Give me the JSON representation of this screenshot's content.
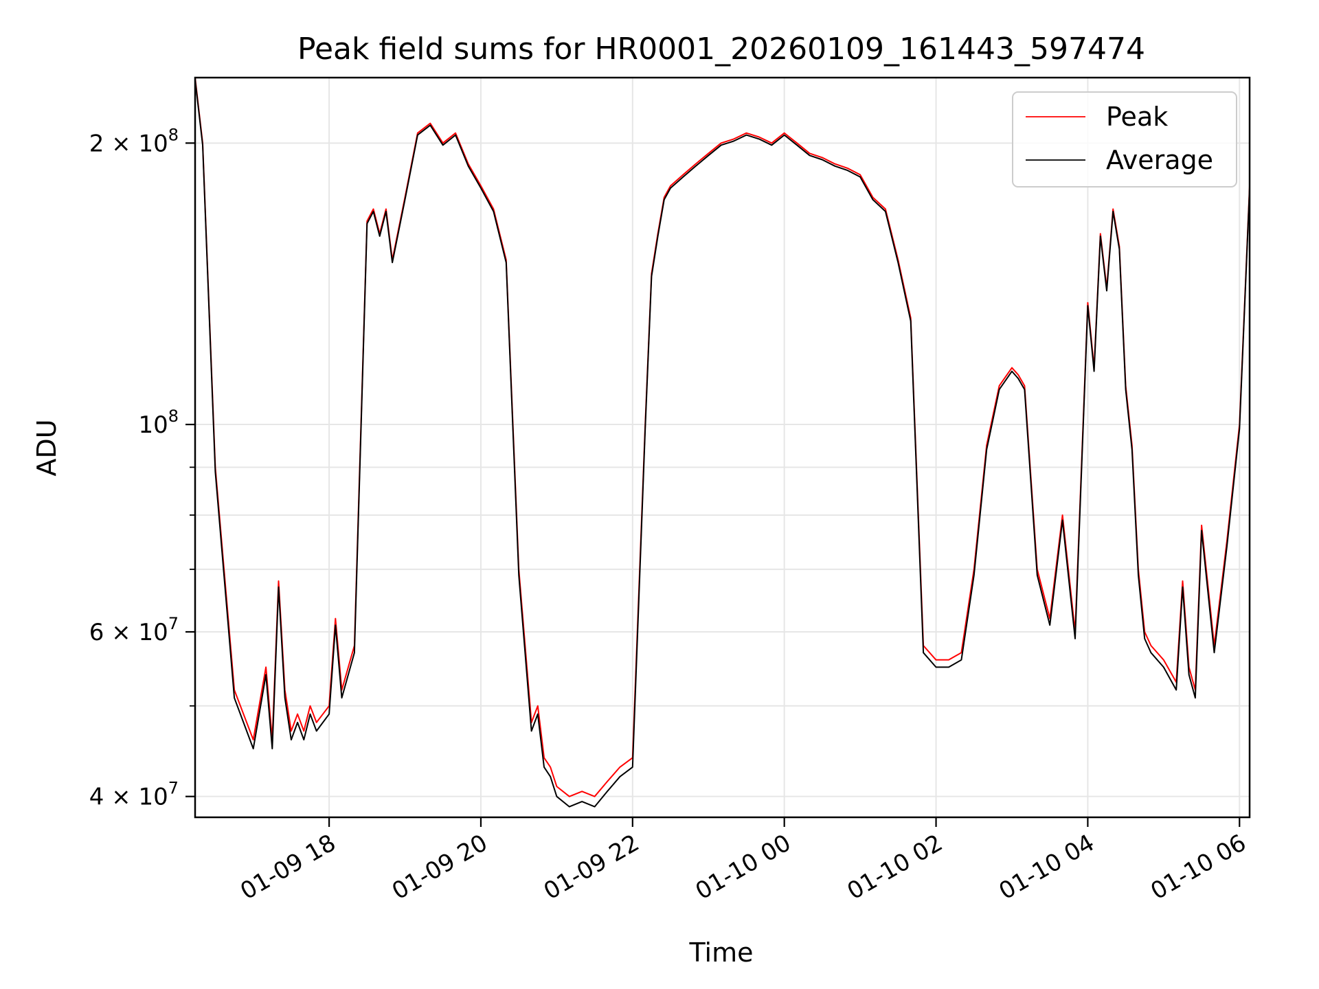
{
  "chart_data": {
    "type": "line",
    "title": "Peak field sums for HR0001_20260109_161443_597474",
    "xlabel": "Time",
    "ylabel": "ADU",
    "y_scale": "log",
    "ylim": [
      38000000,
      235000000
    ],
    "xlim": [
      "01-09 16:14",
      "01-10 06:08"
    ],
    "grid": true,
    "legend_position": "top-right",
    "x_ticks": [
      "01-09 18",
      "01-09 20",
      "01-09 22",
      "01-10 00",
      "01-10 02",
      "01-10 04",
      "01-10 06"
    ],
    "y_ticks": [
      {
        "value": 40000000,
        "base": "4 × 10",
        "exp": "7"
      },
      {
        "value": 60000000,
        "base": "6 × 10",
        "exp": "7"
      },
      {
        "value": 100000000,
        "base": "10",
        "exp": "8"
      },
      {
        "value": 200000000,
        "base": "2 × 10",
        "exp": "8"
      }
    ],
    "x": [
      "01-09 16:14",
      "01-09 16:20",
      "01-09 16:30",
      "01-09 16:45",
      "01-09 17:00",
      "01-09 17:10",
      "01-09 17:15",
      "01-09 17:20",
      "01-09 17:25",
      "01-09 17:30",
      "01-09 17:35",
      "01-09 17:40",
      "01-09 17:45",
      "01-09 17:50",
      "01-09 18:00",
      "01-09 18:05",
      "01-09 18:10",
      "01-09 18:20",
      "01-09 18:30",
      "01-09 18:35",
      "01-09 18:40",
      "01-09 18:45",
      "01-09 18:50",
      "01-09 19:00",
      "01-09 19:10",
      "01-09 19:20",
      "01-09 19:30",
      "01-09 19:40",
      "01-09 19:50",
      "01-09 20:00",
      "01-09 20:10",
      "01-09 20:20",
      "01-09 20:30",
      "01-09 20:40",
      "01-09 20:45",
      "01-09 20:50",
      "01-09 20:55",
      "01-09 21:00",
      "01-09 21:10",
      "01-09 21:20",
      "01-09 21:30",
      "01-09 21:40",
      "01-09 21:50",
      "01-09 22:00",
      "01-09 22:10",
      "01-09 22:15",
      "01-09 22:20",
      "01-09 22:25",
      "01-09 22:30",
      "01-09 22:40",
      "01-09 22:50",
      "01-09 23:00",
      "01-09 23:10",
      "01-09 23:20",
      "01-09 23:30",
      "01-09 23:40",
      "01-09 23:50",
      "01-10 00:00",
      "01-10 00:10",
      "01-10 00:20",
      "01-10 00:30",
      "01-10 00:40",
      "01-10 00:50",
      "01-10 01:00",
      "01-10 01:10",
      "01-10 01:20",
      "01-10 01:30",
      "01-10 01:40",
      "01-10 01:50",
      "01-10 02:00",
      "01-10 02:10",
      "01-10 02:15",
      "01-10 02:20",
      "01-10 02:30",
      "01-10 02:40",
      "01-10 02:50",
      "01-10 03:00",
      "01-10 03:05",
      "01-10 03:10",
      "01-10 03:20",
      "01-10 03:30",
      "01-10 03:40",
      "01-10 03:50",
      "01-10 04:00",
      "01-10 04:05",
      "01-10 04:10",
      "01-10 04:15",
      "01-10 04:20",
      "01-10 04:25",
      "01-10 04:30",
      "01-10 04:35",
      "01-10 04:40",
      "01-10 04:45",
      "01-10 04:50",
      "01-10 05:00",
      "01-10 05:10",
      "01-10 05:15",
      "01-10 05:20",
      "01-10 05:25",
      "01-10 05:30",
      "01-10 05:40",
      "01-10 05:50",
      "01-10 06:00",
      "01-10 06:08"
    ],
    "series": [
      {
        "name": "Peak",
        "color": "#ff0000",
        "values": [
          235000000,
          200000000,
          90000000,
          52000000,
          46000000,
          55000000,
          46000000,
          68000000,
          52000000,
          47000000,
          49000000,
          47000000,
          50000000,
          48000000,
          50000000,
          62000000,
          52000000,
          58000000,
          165000000,
          170000000,
          160000000,
          170000000,
          150000000,
          175000000,
          205000000,
          210000000,
          200000000,
          205000000,
          190000000,
          180000000,
          170000000,
          150000000,
          70000000,
          48000000,
          50000000,
          44000000,
          43000000,
          41000000,
          40000000,
          40500000,
          40000000,
          41500000,
          43000000,
          44000000,
          100000000,
          145000000,
          160000000,
          175000000,
          180000000,
          185000000,
          190000000,
          195000000,
          200000000,
          202000000,
          205000000,
          203000000,
          200000000,
          205000000,
          200000000,
          195000000,
          193000000,
          190000000,
          188000000,
          185000000,
          175000000,
          170000000,
          150000000,
          130000000,
          58000000,
          56000000,
          56000000,
          56500000,
          57000000,
          70000000,
          95000000,
          110000000,
          115000000,
          113000000,
          110000000,
          70000000,
          62000000,
          80000000,
          60000000,
          135000000,
          115000000,
          160000000,
          140000000,
          170000000,
          155000000,
          110000000,
          95000000,
          70000000,
          60000000,
          58000000,
          56000000,
          53000000,
          68000000,
          55000000,
          52000000,
          78000000,
          58000000,
          75000000,
          100000000,
          180000000
        ]
      },
      {
        "name": "Average",
        "color": "#000000",
        "values": [
          234000000,
          199000000,
          89000000,
          51000000,
          45000000,
          54000000,
          45000000,
          67000000,
          51000000,
          46000000,
          48000000,
          46000000,
          49000000,
          47000000,
          49000000,
          61000000,
          51000000,
          57000000,
          164000000,
          169000000,
          159000000,
          169000000,
          149000000,
          174000000,
          204000000,
          209000000,
          199000000,
          204000000,
          189000000,
          179000000,
          169000000,
          149000000,
          69000000,
          47000000,
          49000000,
          43000000,
          42000000,
          40000000,
          39000000,
          39500000,
          39000000,
          40500000,
          42000000,
          43000000,
          99000000,
          144000000,
          159000000,
          174000000,
          179000000,
          184000000,
          189000000,
          194000000,
          199000000,
          201000000,
          204000000,
          202000000,
          199000000,
          204000000,
          199000000,
          194000000,
          192000000,
          189000000,
          187000000,
          184000000,
          174000000,
          169000000,
          149000000,
          129000000,
          57000000,
          55000000,
          55000000,
          55500000,
          56000000,
          69000000,
          94000000,
          109000000,
          114000000,
          112000000,
          109000000,
          69000000,
          61000000,
          79000000,
          59000000,
          134000000,
          114000000,
          159000000,
          139000000,
          169000000,
          154000000,
          109000000,
          94000000,
          69000000,
          59000000,
          57000000,
          55000000,
          52000000,
          67000000,
          54000000,
          51000000,
          77000000,
          57000000,
          74000000,
          99000000,
          179000000
        ]
      }
    ]
  }
}
